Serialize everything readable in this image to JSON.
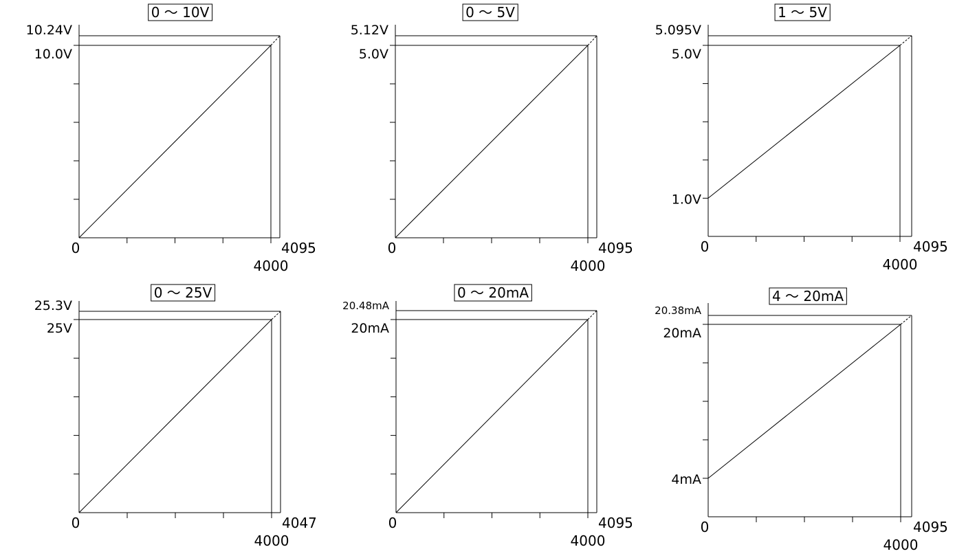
{
  "chart_data": [
    {
      "type": "line",
      "title": "0 ～ 10V",
      "x_origin_label": "0",
      "x_full_label": "4000",
      "x_max_label": "4095",
      "y_full_label": "10.0V",
      "y_max_label": "10.24V",
      "y_offset_label": "",
      "xlim": [
        0,
        4095
      ],
      "ylim": [
        0,
        10.24
      ],
      "x_ticks": [
        0,
        1000,
        2000,
        3000,
        4000
      ],
      "y_ticks": [
        0,
        2,
        4,
        6,
        8,
        10
      ],
      "series": [
        {
          "values": [
            {
              "x": 0,
              "y": 0
            },
            {
              "x": 4000,
              "y": 10.0
            }
          ]
        }
      ],
      "extension": {
        "x": 4095,
        "y": 10.24,
        "style": "dashed"
      }
    },
    {
      "type": "line",
      "title": "0 ～ 5V",
      "x_origin_label": "0",
      "x_full_label": "4000",
      "x_max_label": "4095",
      "y_full_label": "5.0V",
      "y_max_label": "5.12V",
      "y_offset_label": "",
      "xlim": [
        0,
        4095
      ],
      "ylim": [
        0,
        5.12
      ],
      "x_ticks": [
        0,
        1000,
        2000,
        3000,
        4000
      ],
      "y_ticks": [
        0,
        1,
        2,
        3,
        4,
        5
      ],
      "series": [
        {
          "values": [
            {
              "x": 0,
              "y": 0
            },
            {
              "x": 4000,
              "y": 5.0
            }
          ]
        }
      ],
      "extension": {
        "x": 4095,
        "y": 5.12,
        "style": "dashed"
      }
    },
    {
      "type": "line",
      "title": "1 ～ 5V",
      "x_origin_label": "0",
      "x_full_label": "4000",
      "x_max_label": "4095",
      "y_full_label": "5.0V",
      "y_max_label": "5.095V",
      "y_offset_label": "1.0V",
      "xlim": [
        0,
        4095
      ],
      "ylim": [
        0,
        5.32
      ],
      "y_offset_value": 1.0,
      "x_ticks": [
        0,
        1000,
        2000,
        3000,
        4000
      ],
      "y_ticks": [
        0,
        1,
        2,
        3,
        4,
        5
      ],
      "series": [
        {
          "values": [
            {
              "x": 0,
              "y": 1.0
            },
            {
              "x": 4000,
              "y": 5.0
            }
          ]
        }
      ],
      "extension": {
        "x": 4095,
        "y": 5.095,
        "style": "dashed"
      }
    },
    {
      "type": "line",
      "title": "0 ～ 25V",
      "x_origin_label": "0",
      "x_full_label": "4000",
      "x_max_label": "4047",
      "y_full_label": "25V",
      "y_max_label": "25.3V",
      "y_offset_label": "",
      "xlim": [
        0,
        4047
      ],
      "ylim": [
        0,
        25.3
      ],
      "x_ticks": [
        0,
        1000,
        2000,
        3000,
        4000
      ],
      "y_ticks": [
        0,
        5,
        10,
        15,
        20,
        25
      ],
      "series": [
        {
          "values": [
            {
              "x": 0,
              "y": 0
            },
            {
              "x": 4000,
              "y": 25
            }
          ]
        }
      ],
      "extension": {
        "x": 4047,
        "y": 25.3,
        "style": "dashed"
      }
    },
    {
      "type": "line",
      "title": "0 ～ 20mA",
      "x_origin_label": "0",
      "x_full_label": "4000",
      "x_max_label": "4095",
      "y_full_label": "20mA",
      "y_max_label": "20.48mA",
      "y_offset_label": "",
      "xlim": [
        0,
        4095
      ],
      "ylim": [
        0,
        20.48
      ],
      "x_ticks": [
        0,
        1000,
        2000,
        3000,
        4000
      ],
      "y_ticks": [
        0,
        4,
        8,
        12,
        16,
        20
      ],
      "series": [
        {
          "values": [
            {
              "x": 0,
              "y": 0
            },
            {
              "x": 4000,
              "y": 20
            }
          ]
        }
      ],
      "extension": {
        "x": 4095,
        "y": 20.48,
        "style": "dashed"
      }
    },
    {
      "type": "line",
      "title": "4 ～ 20mA",
      "x_origin_label": "0",
      "x_full_label": "4000",
      "x_max_label": "4095",
      "y_full_label": "20mA",
      "y_max_label": "20.38mA",
      "y_offset_label": "4mA",
      "xlim": [
        0,
        4095
      ],
      "ylim": [
        0,
        21.28
      ],
      "y_offset_value": 4,
      "x_ticks": [
        0,
        1000,
        2000,
        3000,
        4000
      ],
      "y_ticks": [
        0,
        4,
        8,
        12,
        16,
        20
      ],
      "series": [
        {
          "values": [
            {
              "x": 0,
              "y": 4
            },
            {
              "x": 4000,
              "y": 20
            }
          ]
        }
      ],
      "extension": {
        "x": 4095,
        "y": 20.38,
        "style": "dashed"
      }
    }
  ]
}
